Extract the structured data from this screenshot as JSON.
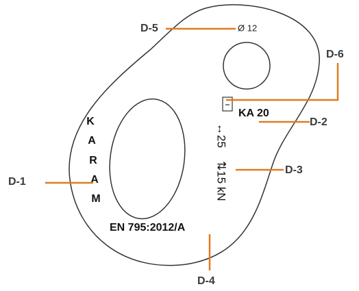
{
  "callouts": [
    {
      "label": "D-1"
    },
    {
      "label": "D-2"
    },
    {
      "label": "D-3"
    },
    {
      "label": "D-4"
    },
    {
      "label": "D-5"
    },
    {
      "label": "D-6"
    }
  ],
  "markings": {
    "brand": [
      "K",
      "A",
      "R",
      "A",
      "M"
    ],
    "diameter": "Ø 12",
    "model": "KA 20",
    "dimension": "↔25",
    "strength": "⇅15 kN",
    "standard": "EN 795:2012/A"
  }
}
